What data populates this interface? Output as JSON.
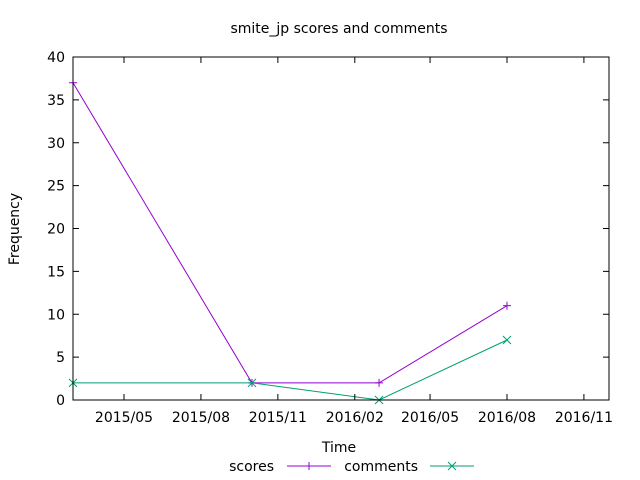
{
  "chart_data": {
    "type": "line",
    "title": "smite_jp scores and comments",
    "xlabel": "Time",
    "ylabel": "Frequency",
    "x_type": "date",
    "xlim": [
      "2015-03-01",
      "2016-12-01"
    ],
    "ylim": [
      0,
      40
    ],
    "xticks": [
      {
        "date": "2015-05-01",
        "label": "2015/05"
      },
      {
        "date": "2015-08-01",
        "label": "2015/08"
      },
      {
        "date": "2015-11-01",
        "label": "2015/11"
      },
      {
        "date": "2016-02-01",
        "label": "2016/02"
      },
      {
        "date": "2016-05-01",
        "label": "2016/05"
      },
      {
        "date": "2016-08-01",
        "label": "2016/08"
      },
      {
        "date": "2016-11-01",
        "label": "2016/11"
      }
    ],
    "yticks": [
      0,
      5,
      10,
      15,
      20,
      25,
      30,
      35,
      40
    ],
    "grid": false,
    "legend_position": "bottom",
    "series": [
      {
        "name": "scores",
        "color": "#9400d3",
        "marker": "plus",
        "x": [
          "2015-03-01",
          "2015-10-01",
          "2016-03-01",
          "2016-08-01"
        ],
        "values": [
          37,
          2,
          2,
          11
        ]
      },
      {
        "name": "comments",
        "color": "#009e73",
        "marker": "cross",
        "x": [
          "2015-03-01",
          "2015-10-01",
          "2016-03-01",
          "2016-08-01"
        ],
        "values": [
          2,
          2,
          0,
          7
        ]
      }
    ]
  }
}
